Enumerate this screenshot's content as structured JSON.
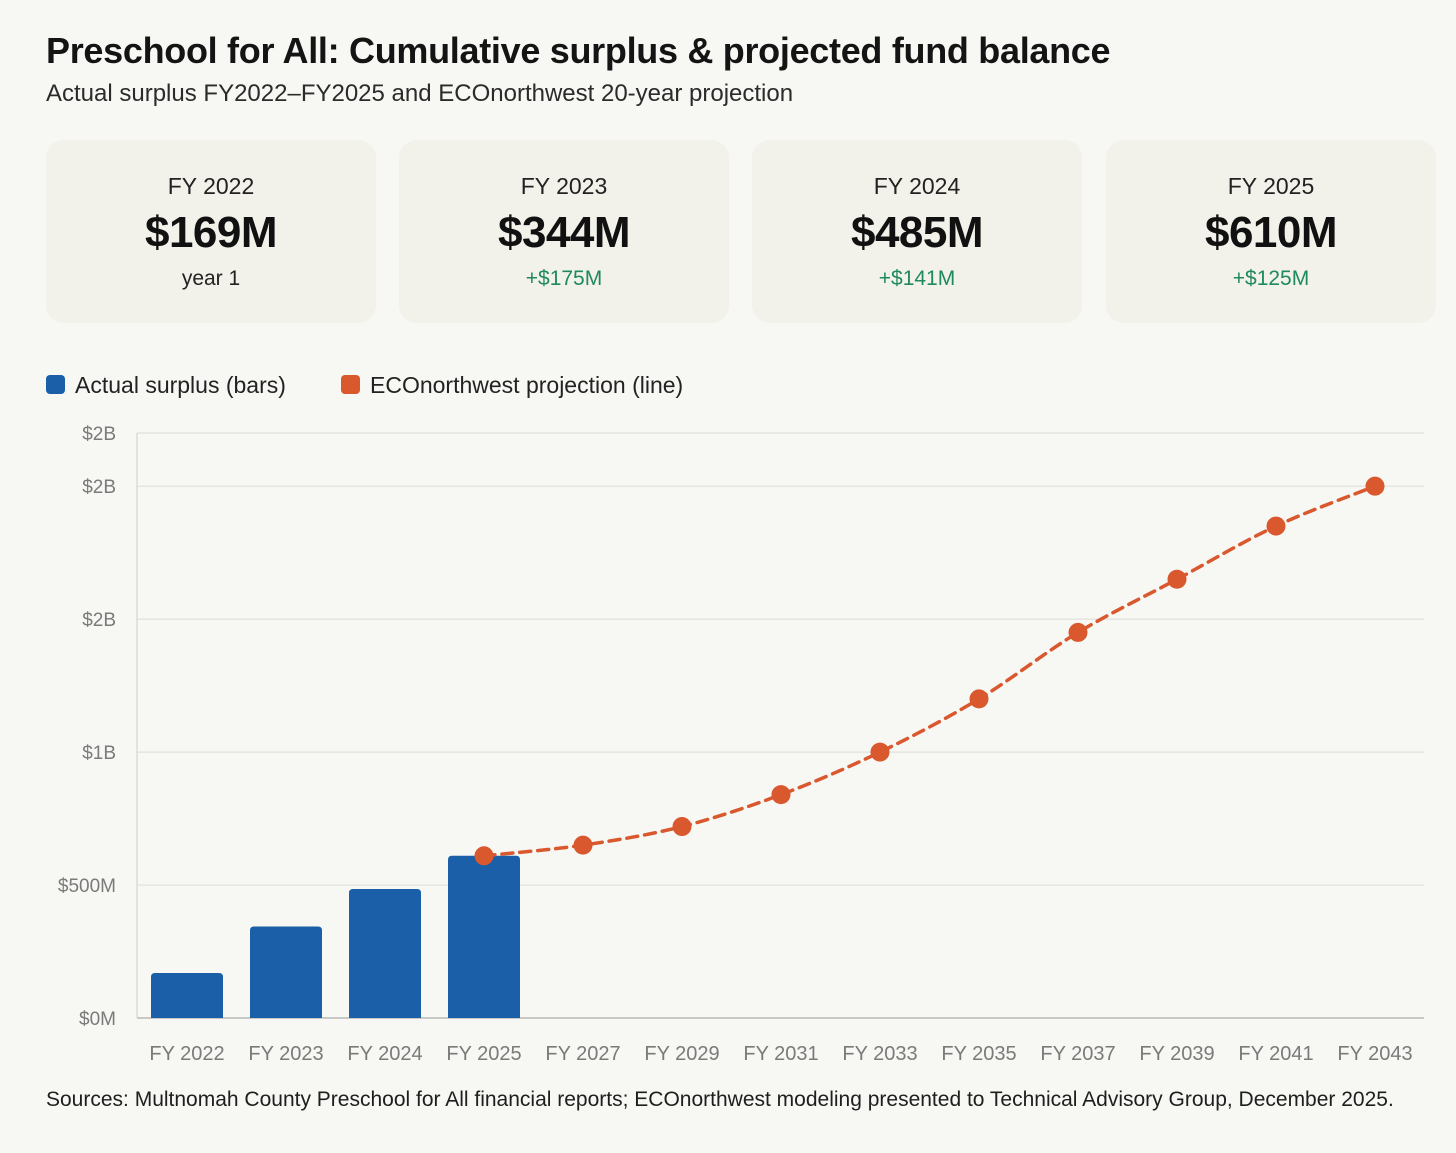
{
  "header": {
    "title": "Preschool for All: Cumulative surplus & projected fund balance",
    "subtitle": "Actual surplus FY2022–FY2025 and ECOnorthwest 20-year projection"
  },
  "cards": [
    {
      "label": "FY 2022",
      "value": "$169M",
      "note": "year 1"
    },
    {
      "label": "FY 2023",
      "value": "$344M",
      "note": "+$175M"
    },
    {
      "label": "FY 2024",
      "value": "$485M",
      "note": "+$141M"
    },
    {
      "label": "FY 2025",
      "value": "$610M",
      "note": "+$125M"
    }
  ],
  "legend": [
    {
      "label": "Actual surplus (bars)",
      "color": "#1a5fa8"
    },
    {
      "label": "ECOnorthwest projection (line)",
      "color": "#d9582e"
    }
  ],
  "chart_data": {
    "type": "bar",
    "categories": [
      "FY 2022",
      "FY 2023",
      "FY 2024",
      "FY 2025",
      "FY 2027",
      "FY 2029",
      "FY 2031",
      "FY 2033",
      "FY 2035",
      "FY 2037",
      "FY 2039",
      "FY 2041",
      "FY 2043"
    ],
    "series": [
      {
        "name": "Actual surplus (bars)",
        "type": "bar",
        "color": "#1a5fa8",
        "values": [
          169,
          344,
          485,
          610,
          null,
          null,
          null,
          null,
          null,
          null,
          null,
          null,
          null
        ]
      },
      {
        "name": "ECOnorthwest projection (line)",
        "type": "line",
        "dashed": true,
        "color": "#d9582e",
        "values": [
          null,
          null,
          null,
          610,
          650,
          720,
          840,
          1000,
          1200,
          1450,
          1650,
          1850,
          2000
        ]
      }
    ],
    "y_ticks": [
      {
        "value": 0,
        "label": "$0M"
      },
      {
        "value": 500,
        "label": "$500M"
      },
      {
        "value": 1000,
        "label": "$1B"
      },
      {
        "value": 1500,
        "label": "$2B"
      },
      {
        "value": 2000,
        "label": "$2B"
      },
      {
        "value": 2200,
        "label": "$2B"
      }
    ],
    "ylim": [
      0,
      2200
    ],
    "units": "$ millions",
    "grid": true,
    "legend_position": "top-left"
  },
  "footer": {
    "source": "Sources: Multnomah County Preschool for All financial reports; ECOnorthwest modeling presented to Technical Advisory Group, December 2025."
  }
}
